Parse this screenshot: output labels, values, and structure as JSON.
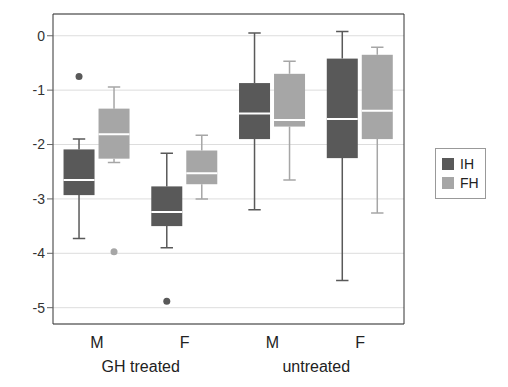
{
  "chart_data": {
    "type": "box",
    "categories": [
      "M",
      "F",
      "M",
      "F"
    ],
    "groups": [
      {
        "label": "GH treated",
        "span": [
          0,
          1
        ]
      },
      {
        "label": "untreated",
        "span": [
          2,
          3
        ]
      }
    ],
    "series": [
      {
        "name": "IH",
        "color": "#595959",
        "values": [
          {
            "min": -3.73,
            "q1": -2.93,
            "median": -2.65,
            "q3": -2.09,
            "max": -1.9,
            "outliers": [
              -0.75
            ]
          },
          {
            "min": -3.9,
            "q1": -3.5,
            "median": -3.24,
            "q3": -2.77,
            "max": -2.16,
            "outliers": [
              -4.88
            ]
          },
          {
            "min": -3.2,
            "q1": -1.9,
            "median": -1.43,
            "q3": -0.87,
            "max": 0.05,
            "outliers": []
          },
          {
            "min": -4.5,
            "q1": -2.25,
            "median": -1.53,
            "q3": -0.42,
            "max": 0.08,
            "outliers": []
          }
        ]
      },
      {
        "name": "FH",
        "color": "#a6a6a6",
        "values": [
          {
            "min": -2.33,
            "q1": -2.26,
            "median": -1.81,
            "q3": -1.34,
            "max": -0.94,
            "outliers": [
              -3.97
            ]
          },
          {
            "min": -3.0,
            "q1": -2.73,
            "median": -2.53,
            "q3": -2.11,
            "max": -1.83,
            "outliers": []
          },
          {
            "min": -2.65,
            "q1": -1.67,
            "median": -1.55,
            "q3": -0.7,
            "max": -0.47,
            "outliers": []
          },
          {
            "min": -3.26,
            "q1": -1.9,
            "median": -1.38,
            "q3": -0.35,
            "max": -0.21,
            "outliers": []
          }
        ]
      }
    ],
    "ylim": [
      -5.3,
      0.4
    ],
    "yticks": [
      -5,
      -4,
      -3,
      -2,
      -1,
      0
    ],
    "grid": true,
    "legend": "right"
  }
}
